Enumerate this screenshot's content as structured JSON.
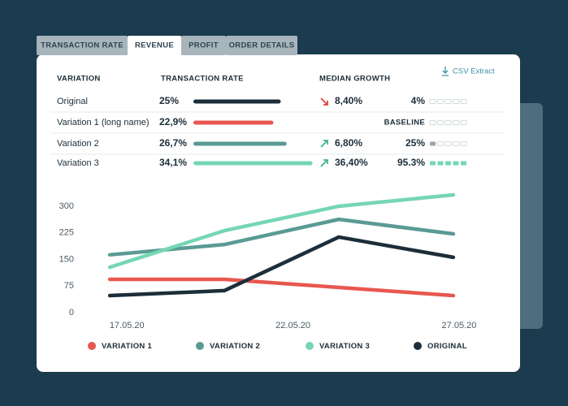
{
  "tabs": [
    "TRANSACTION RATE",
    "REVENUE",
    "PROFIT",
    "ORDER DETAILS"
  ],
  "active_tab": 1,
  "csv_extract": "CSV Extract",
  "table": {
    "headers": [
      "VARIATION",
      "TRANSACTION RATE",
      "MEDIAN GROWTH"
    ],
    "rows": [
      {
        "name": "Original",
        "rate": 25,
        "rate_label": "25%",
        "color": "#1c2e3a",
        "growth_label": "8,40%",
        "trend": "down",
        "score": 4,
        "score_label": "4%"
      },
      {
        "name": "Variation 1 (long name)",
        "rate": 22.9,
        "rate_label": "22,9%",
        "color": "#e8574f",
        "score_label": "BASELINE"
      },
      {
        "name": "Variation 2",
        "rate": 26.7,
        "rate_label": "26,7%",
        "color": "#5a9a94",
        "growth_label": "6,80%",
        "trend": "up",
        "score": 25,
        "score_label": "25%"
      },
      {
        "name": "Variation 3",
        "rate": 34.1,
        "rate_label": "34,1%",
        "color": "#76d6b4",
        "growth_label": "36,40%",
        "trend": "up",
        "score": 95.3,
        "score_label": "95.3%"
      }
    ]
  },
  "chart_data": {
    "type": "line",
    "x": [
      0,
      1,
      2,
      3
    ],
    "xlim": [
      -0.1,
      3.1
    ],
    "xticks": [
      {
        "value": 0.15,
        "label": "17.05.20"
      },
      {
        "value": 1.6,
        "label": "22.05.20"
      },
      {
        "value": 3.05,
        "label": "27.05.20"
      }
    ],
    "ylim": [
      0,
      340
    ],
    "yticks": [
      0,
      75,
      150,
      225,
      300
    ],
    "grid": false,
    "series": [
      {
        "name": "VARIATION 1",
        "color": "#e8574f",
        "values": [
          94,
          94,
          71,
          48
        ]
      },
      {
        "name": "VARIATION 2",
        "color": "#5a9a94",
        "values": [
          163,
          192,
          263,
          222
        ]
      },
      {
        "name": "VARIATION 3",
        "color": "#76d6b4",
        "values": [
          128,
          231,
          300,
          332
        ]
      },
      {
        "name": "ORIGINAL",
        "color": "#1c2e3a",
        "values": [
          48,
          62,
          213,
          156
        ]
      }
    ]
  }
}
